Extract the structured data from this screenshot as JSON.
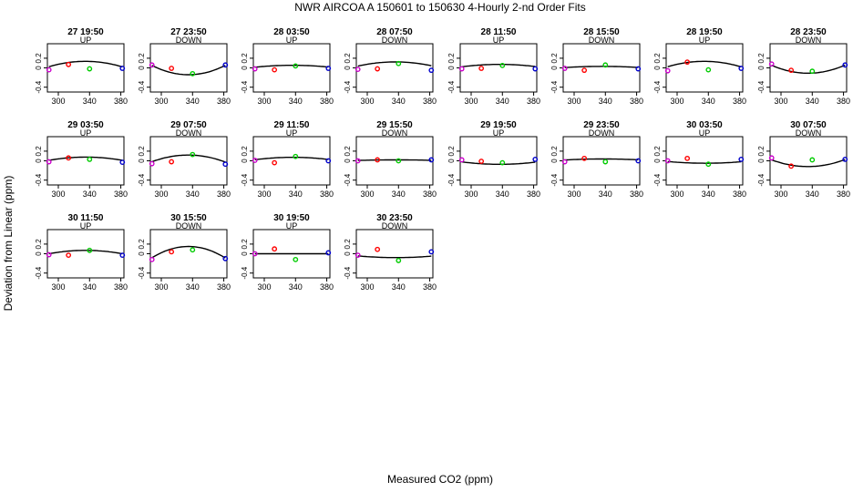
{
  "title": "NWR   AIRCOA A   150601 to 150630   4-Hourly 2-nd Order Fits",
  "xlabel": "Measured CO2 (ppm)",
  "ylabel": "Deviation from Linear (ppm)",
  "chart_data": {
    "type": "scatter",
    "xlim": [
      286,
      384
    ],
    "ylim": [
      -0.5,
      0.5
    ],
    "x_ticks": [
      300,
      340,
      380
    ],
    "x_tick_labels": [
      "300",
      "340",
      "380"
    ],
    "y_ticks": [
      -0.4,
      0,
      0.2
    ],
    "y_tick_labels": [
      "-0.4",
      "0",
      "0.2"
    ],
    "point_colors": [
      "#cc00cc",
      "#ff0000",
      "#00cc00",
      "#0000cc"
    ],
    "panels": [
      {
        "time": "27 19:50",
        "dir": "UP",
        "x": [
          288,
          313,
          340,
          382
        ],
        "y": [
          -0.04,
          0.07,
          -0.02,
          -0.01
        ],
        "fit": [
          -5.14e-05,
          0.0344,
          -5.62
        ]
      },
      {
        "time": "27 23:50",
        "dir": "DOWN",
        "x": [
          288,
          313,
          340,
          382
        ],
        "y": [
          0.06,
          -0.01,
          -0.12,
          0.06
        ],
        "fit": [
          8.75e-05,
          -0.0586,
          9.67
        ]
      },
      {
        "time": "28 03:50",
        "dir": "UP",
        "x": [
          288,
          313,
          340,
          382
        ],
        "y": [
          -0.02,
          -0.04,
          0.04,
          -0.01
        ],
        "fit": [
          -1.71e-05,
          0.0115,
          -1.88
        ]
      },
      {
        "time": "28 07:50",
        "dir": "DOWN",
        "x": [
          288,
          313,
          340,
          382
        ],
        "y": [
          -0.03,
          -0.02,
          0.09,
          -0.05
        ],
        "fit": [
          -3.75e-05,
          0.0252,
          -4.11
        ]
      },
      {
        "time": "28 11:50",
        "dir": "UP",
        "x": [
          288,
          313,
          340,
          382
        ],
        "y": [
          -0.02,
          -0.01,
          0.05,
          -0.02
        ],
        "fit": [
          -2.14e-05,
          0.0144,
          -2.35
        ]
      },
      {
        "time": "28 15:50",
        "dir": "DOWN",
        "x": [
          288,
          313,
          340,
          382
        ],
        "y": [
          -0.01,
          -0.05,
          0.06,
          -0.02
        ],
        "fit": [
          -1.07e-05,
          0.0072,
          -1.18
        ]
      },
      {
        "time": "28 19:50",
        "dir": "UP",
        "x": [
          288,
          313,
          340,
          382
        ],
        "y": [
          -0.06,
          0.12,
          -0.04,
          -0.01
        ],
        "fit": [
          -5.14e-05,
          0.0344,
          -5.62
        ]
      },
      {
        "time": "28 23:50",
        "dir": "DOWN",
        "x": [
          288,
          313,
          340,
          382
        ],
        "y": [
          0.08,
          -0.05,
          -0.07,
          0.06
        ],
        "fit": [
          7.5e-05,
          -0.0502,
          8.29
        ]
      },
      {
        "time": "29 03:50",
        "dir": "UP",
        "x": [
          288,
          313,
          340,
          382
        ],
        "y": [
          -0.02,
          0.06,
          0.03,
          -0.03
        ],
        "fit": [
          -3e-05,
          0.0201,
          -3.29
        ]
      },
      {
        "time": "29 07:50",
        "dir": "DOWN",
        "x": [
          288,
          313,
          340,
          382
        ],
        "y": [
          -0.06,
          -0.02,
          0.13,
          -0.07
        ],
        "fit": [
          -6.43e-05,
          0.043,
          -7.07
        ]
      },
      {
        "time": "29 11:50",
        "dir": "UP",
        "x": [
          288,
          313,
          340,
          382
        ],
        "y": [
          0.01,
          -0.04,
          0.09,
          0.0
        ],
        "fit": [
          -2.14e-05,
          0.0144,
          -2.35
        ]
      },
      {
        "time": "29 15:50",
        "dir": "DOWN",
        "x": [
          288,
          313,
          340,
          382
        ],
        "y": [
          0.0,
          0.02,
          0.0,
          0.02
        ],
        "fit": [
          -4.3e-06,
          0.0029,
          -0.47
        ]
      },
      {
        "time": "29 19:50",
        "dir": "UP",
        "x": [
          288,
          313,
          340,
          382
        ],
        "y": [
          0.02,
          -0.01,
          -0.04,
          0.03
        ],
        "fit": [
          2.14e-05,
          -0.0144,
          2.35
        ]
      },
      {
        "time": "29 23:50",
        "dir": "DOWN",
        "x": [
          288,
          313,
          340,
          382
        ],
        "y": [
          -0.02,
          0.05,
          -0.02,
          0.0
        ],
        "fit": [
          -8.6e-06,
          0.0058,
          -0.94
        ]
      },
      {
        "time": "30 03:50",
        "dir": "UP",
        "x": [
          288,
          313,
          340,
          382
        ],
        "y": [
          0.0,
          0.05,
          -0.07,
          0.03
        ],
        "fit": [
          1.5e-05,
          -0.0101,
          1.65
        ]
      },
      {
        "time": "30 07:50",
        "dir": "DOWN",
        "x": [
          288,
          313,
          340,
          382
        ],
        "y": [
          0.06,
          -0.11,
          0.02,
          0.03
        ],
        "fit": [
          6.43e-05,
          -0.043,
          7.07
        ]
      },
      {
        "time": "30 11:50",
        "dir": "UP",
        "x": [
          288,
          313,
          340,
          382
        ],
        "y": [
          -0.02,
          -0.03,
          0.07,
          -0.03
        ],
        "fit": [
          -3.21e-05,
          0.0215,
          -3.53
        ]
      },
      {
        "time": "30 15:50",
        "dir": "DOWN",
        "x": [
          288,
          313,
          340,
          382
        ],
        "y": [
          -0.12,
          0.04,
          0.08,
          -0.1
        ],
        "fit": [
          -0.0001071,
          0.0717,
          -11.85
        ]
      },
      {
        "time": "30 19:50",
        "dir": "UP",
        "x": [
          288,
          313,
          340,
          382
        ],
        "y": [
          0.0,
          0.1,
          -0.12,
          0.02
        ],
        "fit": [
          0.0,
          0.0,
          0.0
        ]
      },
      {
        "time": "30 23:50",
        "dir": "DOWN",
        "x": [
          288,
          313,
          340,
          382
        ],
        "y": [
          -0.03,
          0.09,
          -0.14,
          0.04
        ],
        "fit": [
          1.5e-05,
          -0.0101,
          1.62
        ]
      }
    ]
  }
}
